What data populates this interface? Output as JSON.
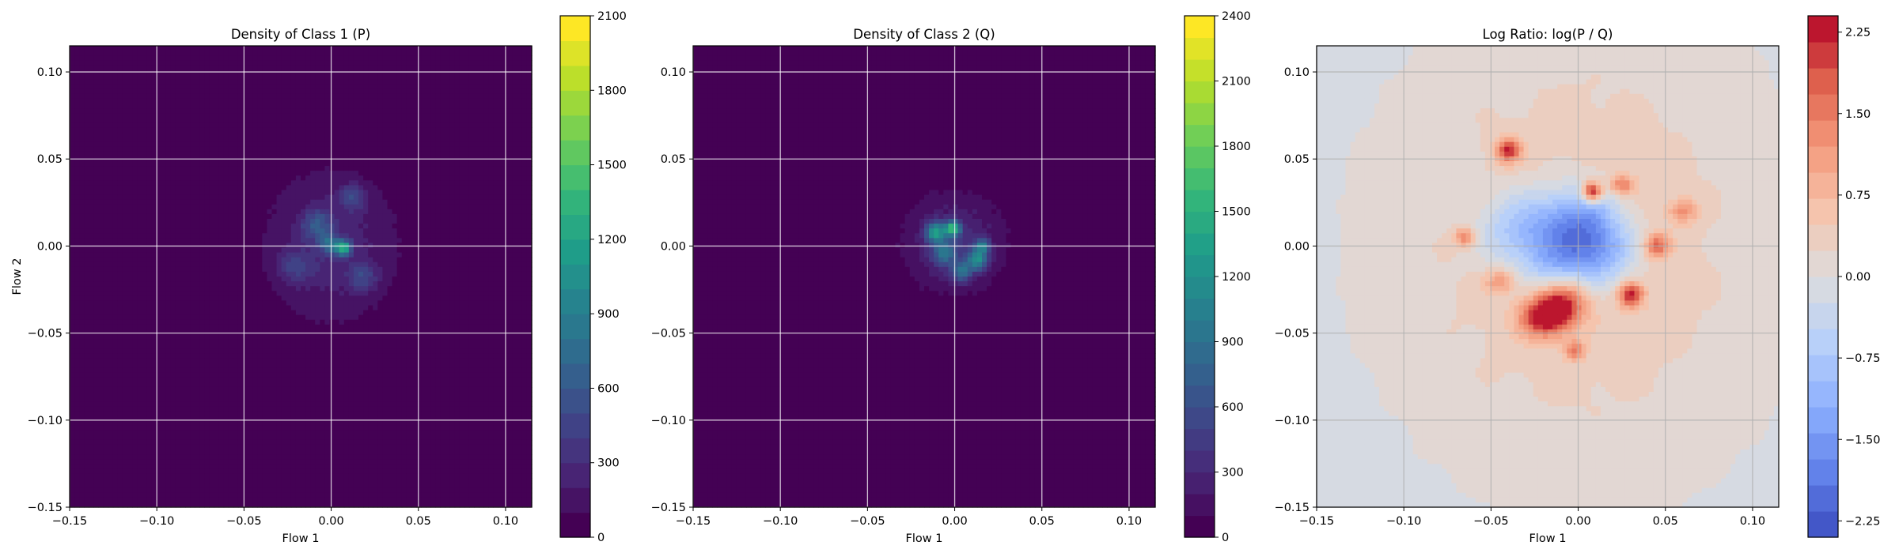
{
  "chart_data": [
    {
      "type": "heatmap",
      "title": "Density of Class 1 (P)",
      "xlabel": "Flow 1",
      "ylabel": "Flow 2",
      "xlim": [
        -0.15,
        0.115
      ],
      "ylim": [
        -0.15,
        0.115
      ],
      "x_ticks": [
        "−0.15",
        "−0.10",
        "−0.05",
        "0.00",
        "0.05",
        "0.10"
      ],
      "y_ticks": [
        "−0.15",
        "−0.10",
        "−0.05",
        "0.00",
        "0.05",
        "0.10"
      ],
      "grid": true,
      "colormap": "viridis",
      "colorbar": {
        "min": 0,
        "max": 2100,
        "levels": 21,
        "ticks": [
          "0",
          "300",
          "600",
          "900",
          "1200",
          "1500",
          "1800",
          "2100"
        ]
      },
      "blobs": [
        {
          "x": 0.0,
          "y": 0.0,
          "sx": 0.028,
          "sy": 0.032,
          "z": 260
        },
        {
          "x": 0.007,
          "y": -0.001,
          "sx": 0.003,
          "sy": 0.003,
          "z": 1100
        },
        {
          "x": -0.008,
          "y": 0.012,
          "sx": 0.006,
          "sy": 0.006,
          "z": 420
        },
        {
          "x": 0.012,
          "y": 0.028,
          "sx": 0.005,
          "sy": 0.005,
          "z": 380
        },
        {
          "x": -0.02,
          "y": -0.012,
          "sx": 0.007,
          "sy": 0.006,
          "z": 300
        },
        {
          "x": 0.018,
          "y": -0.018,
          "sx": 0.006,
          "sy": 0.006,
          "z": 320
        },
        {
          "x": -0.001,
          "y": 0.001,
          "sx": 0.004,
          "sy": 0.004,
          "z": 520
        }
      ]
    },
    {
      "type": "heatmap",
      "title": "Density of Class 2 (Q)",
      "xlabel": "Flow 1",
      "ylabel": "",
      "xlim": [
        -0.15,
        0.115
      ],
      "ylim": [
        -0.15,
        0.115
      ],
      "x_ticks": [
        "−0.15",
        "−0.10",
        "−0.05",
        "0.00",
        "0.05",
        "0.10"
      ],
      "y_ticks": [
        "−0.15",
        "−0.10",
        "−0.05",
        "0.00",
        "0.05",
        "0.10"
      ],
      "grid": true,
      "colormap": "viridis",
      "colorbar": {
        "min": 0,
        "max": 2400,
        "levels": 24,
        "ticks": [
          "0",
          "300",
          "600",
          "900",
          "1200",
          "1500",
          "1800",
          "2100",
          "2400"
        ]
      },
      "blobs": [
        {
          "x": 0.0,
          "y": 0.002,
          "sx": 0.02,
          "sy": 0.02,
          "z": 330
        },
        {
          "x": -0.001,
          "y": 0.01,
          "sx": 0.003,
          "sy": 0.003,
          "z": 1400
        },
        {
          "x": -0.011,
          "y": 0.008,
          "sx": 0.004,
          "sy": 0.004,
          "z": 1100
        },
        {
          "x": 0.013,
          "y": -0.008,
          "sx": 0.004,
          "sy": 0.004,
          "z": 1000
        },
        {
          "x": 0.016,
          "y": 0.0,
          "sx": 0.003,
          "sy": 0.003,
          "z": 800
        },
        {
          "x": 0.004,
          "y": -0.015,
          "sx": 0.004,
          "sy": 0.004,
          "z": 700
        },
        {
          "x": -0.006,
          "y": -0.004,
          "sx": 0.005,
          "sy": 0.005,
          "z": 650
        }
      ]
    },
    {
      "type": "heatmap",
      "title": "Log Ratio: log(P / Q)",
      "xlabel": "Flow 1",
      "ylabel": "",
      "xlim": [
        -0.15,
        0.115
      ],
      "ylim": [
        -0.15,
        0.115
      ],
      "x_ticks": [
        "−0.15",
        "−0.10",
        "−0.05",
        "0.00",
        "0.05",
        "0.10"
      ],
      "y_ticks": [
        "−0.15",
        "−0.10",
        "−0.05",
        "0.00",
        "0.05",
        "0.10"
      ],
      "grid": true,
      "colormap": "coolwarm",
      "colorbar": {
        "min": -2.4,
        "max": 2.4,
        "levels": 20,
        "ticks": [
          "−2.25",
          "−1.50",
          "−0.75",
          "0.00",
          "0.75",
          "1.50",
          "2.25"
        ],
        "tick_values": [
          -2.25,
          -1.5,
          -0.75,
          0.0,
          0.75,
          1.5,
          2.25
        ]
      },
      "blobs": [
        {
          "x": 0.0,
          "y": 0.0,
          "sx": 0.09,
          "sy": 0.11,
          "z": 0.55
        },
        {
          "x": -0.03,
          "y": 0.008,
          "sx": 0.018,
          "sy": 0.016,
          "z": -1.3
        },
        {
          "x": 0.002,
          "y": 0.012,
          "sx": 0.016,
          "sy": 0.016,
          "z": -1.7
        },
        {
          "x": 0.012,
          "y": -0.005,
          "sx": 0.015,
          "sy": 0.013,
          "z": -1.2
        },
        {
          "x": -0.015,
          "y": -0.012,
          "sx": 0.012,
          "sy": 0.01,
          "z": -0.6
        },
        {
          "x": -0.019,
          "y": -0.041,
          "sx": 0.01,
          "sy": 0.008,
          "z": 2.2
        },
        {
          "x": -0.008,
          "y": -0.032,
          "sx": 0.009,
          "sy": 0.008,
          "z": 1.5
        },
        {
          "x": 0.008,
          "y": 0.031,
          "sx": 0.004,
          "sy": 0.004,
          "z": 2.5
        },
        {
          "x": -0.04,
          "y": 0.055,
          "sx": 0.005,
          "sy": 0.005,
          "z": 1.9
        },
        {
          "x": 0.03,
          "y": -0.028,
          "sx": 0.005,
          "sy": 0.005,
          "z": 1.9
        },
        {
          "x": 0.045,
          "y": 0.0,
          "sx": 0.005,
          "sy": 0.005,
          "z": 1.5
        },
        {
          "x": -0.065,
          "y": 0.005,
          "sx": 0.004,
          "sy": 0.004,
          "z": 1.3
        },
        {
          "x": -0.002,
          "y": -0.06,
          "sx": 0.004,
          "sy": 0.004,
          "z": 1.2
        },
        {
          "x": 0.06,
          "y": 0.02,
          "sx": 0.006,
          "sy": 0.005,
          "z": 1.0
        },
        {
          "x": -0.045,
          "y": -0.02,
          "sx": 0.006,
          "sy": 0.005,
          "z": 1.0
        },
        {
          "x": 0.025,
          "y": 0.035,
          "sx": 0.005,
          "sy": 0.004,
          "z": 1.3
        }
      ]
    }
  ]
}
